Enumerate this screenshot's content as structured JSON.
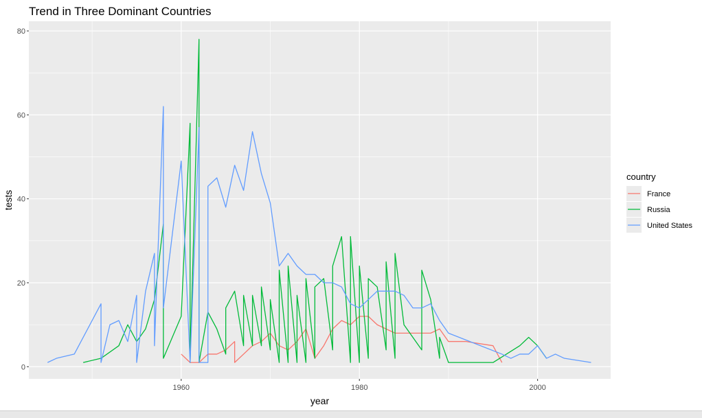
{
  "chart_data": {
    "type": "line",
    "title": "Trend in Three Dominant Countries",
    "xlabel": "year",
    "ylabel": "tests",
    "xlim": [
      1942.9,
      2008.2
    ],
    "ylim": [
      -2.9,
      82.3
    ],
    "x_ticks": [
      1960,
      1980,
      2000
    ],
    "y_ticks": [
      0,
      20,
      40,
      60,
      80
    ],
    "grid": true,
    "legend": {
      "title": "country",
      "position": "right"
    },
    "series": [
      {
        "name": "France",
        "color": "#F8766D",
        "points": [
          [
            1960,
            3
          ],
          [
            1961,
            1
          ],
          [
            1962,
            1
          ],
          [
            1963,
            3
          ],
          [
            1964,
            3
          ],
          [
            1965,
            4
          ],
          [
            1966,
            6
          ],
          [
            1966,
            1
          ],
          [
            1967,
            3
          ],
          [
            1968,
            5
          ],
          [
            1969,
            6
          ],
          [
            1970,
            8
          ],
          [
            1971,
            5
          ],
          [
            1972,
            4
          ],
          [
            1973,
            6
          ],
          [
            1974,
            9
          ],
          [
            1975,
            2
          ],
          [
            1976,
            5
          ],
          [
            1977,
            9
          ],
          [
            1978,
            11
          ],
          [
            1979,
            10
          ],
          [
            1980,
            12
          ],
          [
            1981,
            12
          ],
          [
            1982,
            10
          ],
          [
            1983,
            9
          ],
          [
            1984,
            8
          ],
          [
            1985,
            8
          ],
          [
            1986,
            8
          ],
          [
            1987,
            8
          ],
          [
            1988,
            8
          ],
          [
            1989,
            9
          ],
          [
            1990,
            6
          ],
          [
            1991,
            6
          ],
          [
            1992,
            6
          ],
          [
            1995,
            5
          ],
          [
            1996,
            1
          ]
        ]
      },
      {
        "name": "Russia",
        "color": "#00BA38",
        "points": [
          [
            1949,
            1
          ],
          [
            1951,
            2
          ],
          [
            1953,
            5
          ],
          [
            1954,
            10
          ],
          [
            1955,
            6
          ],
          [
            1956,
            9
          ],
          [
            1957,
            16
          ],
          [
            1958,
            34
          ],
          [
            1958,
            2
          ],
          [
            1960,
            12
          ],
          [
            1961,
            58
          ],
          [
            1961,
            1
          ],
          [
            1962,
            78
          ],
          [
            1962,
            1
          ],
          [
            1963,
            13
          ],
          [
            1964,
            9
          ],
          [
            1965,
            3
          ],
          [
            1965,
            14
          ],
          [
            1966,
            18
          ],
          [
            1967,
            5
          ],
          [
            1967,
            17
          ],
          [
            1968,
            5
          ],
          [
            1968,
            17
          ],
          [
            1969,
            5
          ],
          [
            1969,
            19
          ],
          [
            1970,
            4
          ],
          [
            1970,
            16
          ],
          [
            1971,
            1
          ],
          [
            1971,
            23
          ],
          [
            1972,
            1
          ],
          [
            1972,
            24
          ],
          [
            1973,
            1
          ],
          [
            1973,
            17
          ],
          [
            1974,
            1
          ],
          [
            1974,
            21
          ],
          [
            1975,
            2
          ],
          [
            1975,
            19
          ],
          [
            1976,
            21
          ],
          [
            1977,
            4
          ],
          [
            1977,
            24
          ],
          [
            1978,
            31
          ],
          [
            1979,
            1
          ],
          [
            1979,
            31
          ],
          [
            1980,
            1
          ],
          [
            1980,
            24
          ],
          [
            1981,
            2
          ],
          [
            1981,
            21
          ],
          [
            1982,
            19
          ],
          [
            1983,
            4
          ],
          [
            1983,
            25
          ],
          [
            1984,
            2
          ],
          [
            1984,
            27
          ],
          [
            1985,
            10
          ],
          [
            1987,
            4
          ],
          [
            1987,
            23
          ],
          [
            1988,
            16
          ],
          [
            1989,
            2
          ],
          [
            1989,
            7
          ],
          [
            1990,
            1
          ],
          [
            1995,
            1
          ],
          [
            1998,
            5
          ],
          [
            1999,
            7
          ],
          [
            2000,
            5
          ],
          [
            2001,
            2
          ]
        ]
      },
      {
        "name": "United States",
        "color": "#619CFF",
        "points": [
          [
            1945,
            1
          ],
          [
            1946,
            2
          ],
          [
            1948,
            3
          ],
          [
            1951,
            15
          ],
          [
            1951,
            1
          ],
          [
            1952,
            10
          ],
          [
            1953,
            11
          ],
          [
            1954,
            6
          ],
          [
            1955,
            17
          ],
          [
            1955,
            1
          ],
          [
            1956,
            18
          ],
          [
            1957,
            27
          ],
          [
            1957,
            5
          ],
          [
            1958,
            62
          ],
          [
            1958,
            14
          ],
          [
            1960,
            49
          ],
          [
            1961,
            1
          ],
          [
            1962,
            57
          ],
          [
            1962,
            1
          ],
          [
            1963,
            1
          ],
          [
            1963,
            43
          ],
          [
            1964,
            45
          ],
          [
            1965,
            38
          ],
          [
            1966,
            48
          ],
          [
            1967,
            42
          ],
          [
            1968,
            56
          ],
          [
            1969,
            46
          ],
          [
            1970,
            39
          ],
          [
            1971,
            24
          ],
          [
            1972,
            27
          ],
          [
            1973,
            24
          ],
          [
            1974,
            22
          ],
          [
            1975,
            22
          ],
          [
            1976,
            20
          ],
          [
            1977,
            20
          ],
          [
            1978,
            19
          ],
          [
            1979,
            15
          ],
          [
            1980,
            14
          ],
          [
            1981,
            16
          ],
          [
            1982,
            18
          ],
          [
            1983,
            18
          ],
          [
            1984,
            18
          ],
          [
            1985,
            17
          ],
          [
            1986,
            14
          ],
          [
            1987,
            14
          ],
          [
            1988,
            15
          ],
          [
            1989,
            11
          ],
          [
            1990,
            8
          ],
          [
            1996,
            3
          ],
          [
            1997,
            2
          ],
          [
            1998,
            3
          ],
          [
            1999,
            3
          ],
          [
            2000,
            5
          ],
          [
            2001,
            2
          ],
          [
            2002,
            3
          ],
          [
            2003,
            2
          ],
          [
            2006,
            1
          ]
        ]
      }
    ]
  }
}
